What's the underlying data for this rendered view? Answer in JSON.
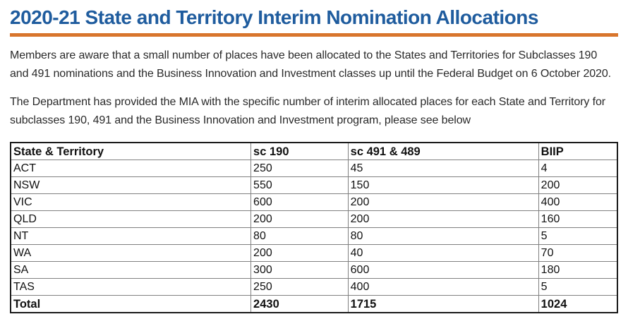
{
  "page": {
    "title": "2020-21 State and Territory Interim Nomination Allocations",
    "paragraphs": {
      "p1": "Members are aware that a small number of places have been allocated to the States and Territories for Subclasses 190 and 491 nominations and the Business Innovation and Investment classes up until the Federal Budget on 6 October 2020.",
      "p2": "The Department has provided the MIA with the specific number of interim allocated places for each State and Territory for subclasses 190, 491 and the Business Innovation and Investment program, please see below"
    },
    "colors": {
      "heading_blue": "#1f5c9e",
      "rule_orange": "#d8752c",
      "table_outer_border": "#1a1a1a",
      "table_inner_border": "#808080"
    }
  },
  "table": {
    "headers": [
      "State & Territory",
      "sc 190",
      "sc 491 & 489",
      "BIIP"
    ],
    "rows": [
      [
        "ACT",
        "250",
        "45",
        "4"
      ],
      [
        "NSW",
        "550",
        "150",
        "200"
      ],
      [
        "VIC",
        "600",
        "200",
        "400"
      ],
      [
        "QLD",
        "200",
        "200",
        "160"
      ],
      [
        "NT",
        "80",
        "80",
        "5"
      ],
      [
        "WA",
        "200",
        "40",
        "70"
      ],
      [
        "SA",
        "300",
        "600",
        "180"
      ],
      [
        "TAS",
        "250",
        "400",
        "5"
      ]
    ],
    "total_row": [
      "Total",
      "2430",
      "1715",
      "1024"
    ]
  }
}
